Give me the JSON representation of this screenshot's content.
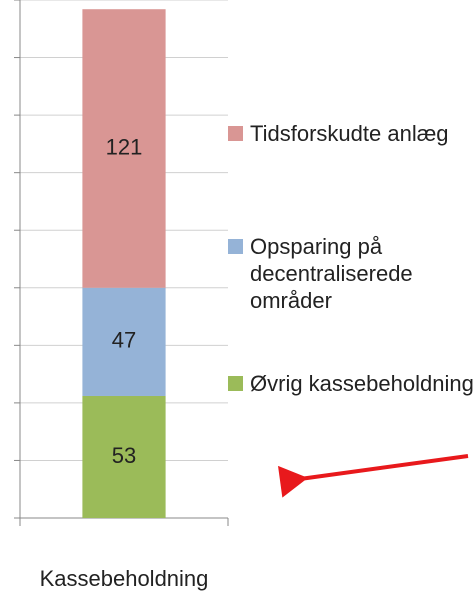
{
  "chart_data": {
    "type": "stacked_bar",
    "categories": [
      "Kassebeholdning"
    ],
    "series": [
      {
        "name": "Øvrig kassebeholdning",
        "color": "#9bbb59",
        "values": [
          53
        ]
      },
      {
        "name": "Opsparing på decentraliserede områder",
        "color": "#95b3d7",
        "values": [
          47
        ]
      },
      {
        "name": "Tidsforskudte anlæg",
        "color": "#d99694",
        "values": [
          121
        ]
      }
    ],
    "ylim": [
      0,
      225
    ],
    "yticks": [
      0,
      25,
      50,
      75,
      100,
      125,
      150,
      175,
      200,
      225
    ],
    "grid": true,
    "legend": "right"
  }
}
